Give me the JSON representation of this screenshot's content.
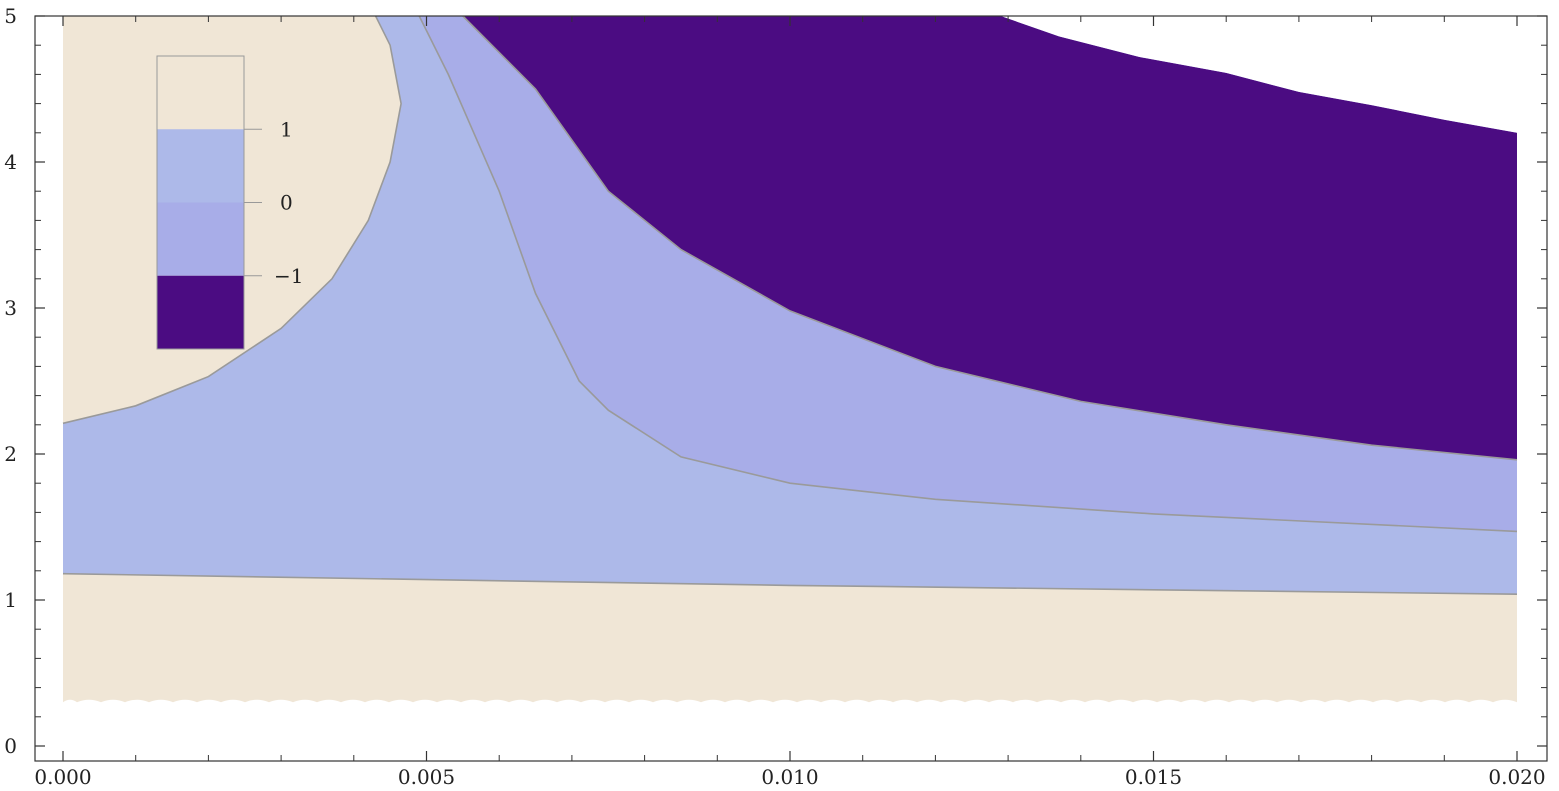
{
  "chart_data": {
    "type": "contour",
    "title": "",
    "xlabel": "",
    "ylabel": "",
    "xlim": [
      0.0,
      0.02
    ],
    "ylim": [
      0,
      5
    ],
    "x_ticks": [
      {
        "value": 0.0,
        "label": "0.000"
      },
      {
        "value": 0.005,
        "label": "0.005"
      },
      {
        "value": 0.01,
        "label": "0.010"
      },
      {
        "value": 0.015,
        "label": "0.015"
      },
      {
        "value": 0.02,
        "label": "0.020"
      }
    ],
    "y_ticks": [
      {
        "value": 0,
        "label": "0"
      },
      {
        "value": 1,
        "label": "1"
      },
      {
        "value": 2,
        "label": "2"
      },
      {
        "value": 3,
        "label": "3"
      },
      {
        "value": 4,
        "label": "4"
      },
      {
        "value": 5,
        "label": "5"
      }
    ],
    "grid": false,
    "legend_position": "top-left",
    "levels": [
      {
        "range": "above 1",
        "color": "#f0e6d6"
      },
      {
        "range": "0 to 1",
        "color": "#adb9e9"
      },
      {
        "range": "-1 to 0",
        "color": "#a8ade8"
      },
      {
        "range": "below -1",
        "color": "#4b0c82"
      }
    ],
    "legend_ticks": [
      {
        "value": 1,
        "label": "1"
      },
      {
        "value": 0,
        "label": "0"
      },
      {
        "value": -1,
        "label": "−1"
      }
    ],
    "plot_y_range": [
      0.3,
      5
    ],
    "contours": [
      {
        "level": 1,
        "name": "upper-left",
        "points": [
          [
            0.0,
            2.21
          ],
          [
            0.001,
            2.33
          ],
          [
            0.002,
            2.53
          ],
          [
            0.003,
            2.86
          ],
          [
            0.0037,
            3.2
          ],
          [
            0.0042,
            3.6
          ],
          [
            0.0045,
            4.0
          ],
          [
            0.00465,
            4.4
          ],
          [
            0.0045,
            4.8
          ],
          [
            0.0043,
            5.0
          ]
        ]
      },
      {
        "level": 1,
        "name": "lower",
        "points": [
          [
            0.0,
            1.18
          ],
          [
            0.005,
            1.14
          ],
          [
            0.01,
            1.1
          ],
          [
            0.015,
            1.07
          ],
          [
            0.02,
            1.04
          ]
        ]
      },
      {
        "level": 0,
        "name": "middle",
        "points": [
          [
            0.0049,
            5.0
          ],
          [
            0.0053,
            4.6
          ],
          [
            0.006,
            3.8
          ],
          [
            0.0065,
            3.1
          ],
          [
            0.0071,
            2.5
          ],
          [
            0.0075,
            2.3
          ],
          [
            0.0085,
            1.98
          ],
          [
            0.01,
            1.8
          ],
          [
            0.012,
            1.69
          ],
          [
            0.015,
            1.59
          ],
          [
            0.02,
            1.47
          ]
        ]
      },
      {
        "level": -1,
        "name": "upper",
        "points": [
          [
            0.0055,
            5.0
          ],
          [
            0.0065,
            4.5
          ],
          [
            0.0075,
            3.8
          ],
          [
            0.0085,
            3.4
          ],
          [
            0.01,
            2.98
          ],
          [
            0.012,
            2.6
          ],
          [
            0.014,
            2.36
          ],
          [
            0.016,
            2.2
          ],
          [
            0.018,
            2.06
          ],
          [
            0.02,
            1.96
          ]
        ]
      },
      {
        "level": -1,
        "name": "top-edge",
        "points": [
          [
            0.0129,
            5.0
          ],
          [
            0.0137,
            4.86
          ],
          [
            0.0148,
            4.72
          ],
          [
            0.016,
            4.61
          ],
          [
            0.017,
            4.48
          ],
          [
            0.018,
            4.39
          ],
          [
            0.019,
            4.29
          ],
          [
            0.02,
            4.2
          ]
        ]
      }
    ]
  }
}
